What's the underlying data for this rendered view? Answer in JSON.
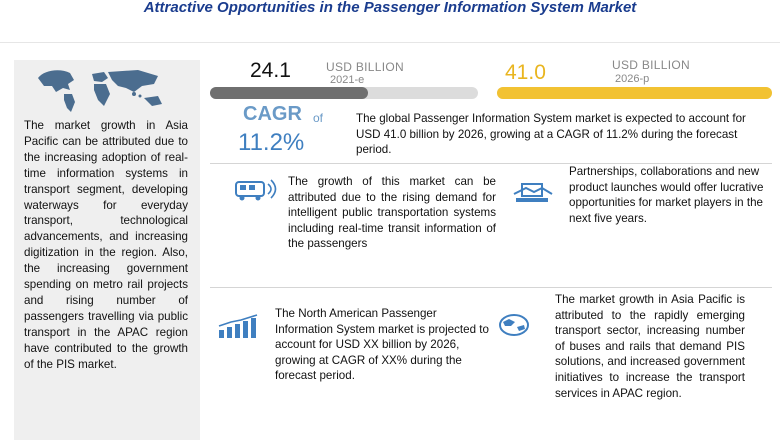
{
  "title": "Attractive Opportunities in the Passenger Information System Market",
  "left_panel": {
    "map_icon": "world-map-icon",
    "text": "The market growth in Asia Pacific can be attributed due to the increasing adoption of real-time information systems in transport segment, developing waterways for everyday transport, technological advancements, and increasing digitization in the region. Also, the increasing government spending on metro rail projects and rising number of passengers travelling via public transport in the APAC region have contributed to the growth of the PIS market."
  },
  "stat_2021": {
    "value": "24.1",
    "unit": "USD BILLION",
    "year": "2021-e",
    "fill_fraction": 0.59,
    "bar_color": "#6f6f6f"
  },
  "stat_2026": {
    "value": "41.0",
    "unit": "USD BILLION",
    "year": "2026-p",
    "fill_fraction": 1.0,
    "bar_color": "#f2c232"
  },
  "cagr": {
    "label": "CAGR",
    "of": "of",
    "value": "11.2%"
  },
  "summary": "The global Passenger Information System market is expected to account for USD 41.0 billion by 2026, growing at a CAGR of 11.2% during the forecast period.",
  "growth_text": "The growth of this market can be attributed due to the rising demand for intelligent public transportation systems including real-time transit information of the passengers",
  "partnerships_text": "Partnerships, collaborations and new product launches would offer lucrative opportunities for market players in the next five years.",
  "north_america_text": "The North American Passenger Information System market is projected to account for USD XX billion by 2026, growing at CAGR of XX% during the forecast period.",
  "asia_text": "The market growth in Asia Pacific is attributed to the rapidly emerging transport sector, increasing number of buses and rails that demand PIS solutions, and increased government initiatives to increase the transport services in APAC region.",
  "icons": {
    "growth": "bus-signal-icon",
    "partnerships": "handshake-icon",
    "north_america": "bar-growth-icon",
    "asia": "globe-icon"
  },
  "colors": {
    "title": "#1a3c8e",
    "cagr": "#3f7fc0",
    "panel": "#efefef",
    "gold": "#f2c232"
  }
}
